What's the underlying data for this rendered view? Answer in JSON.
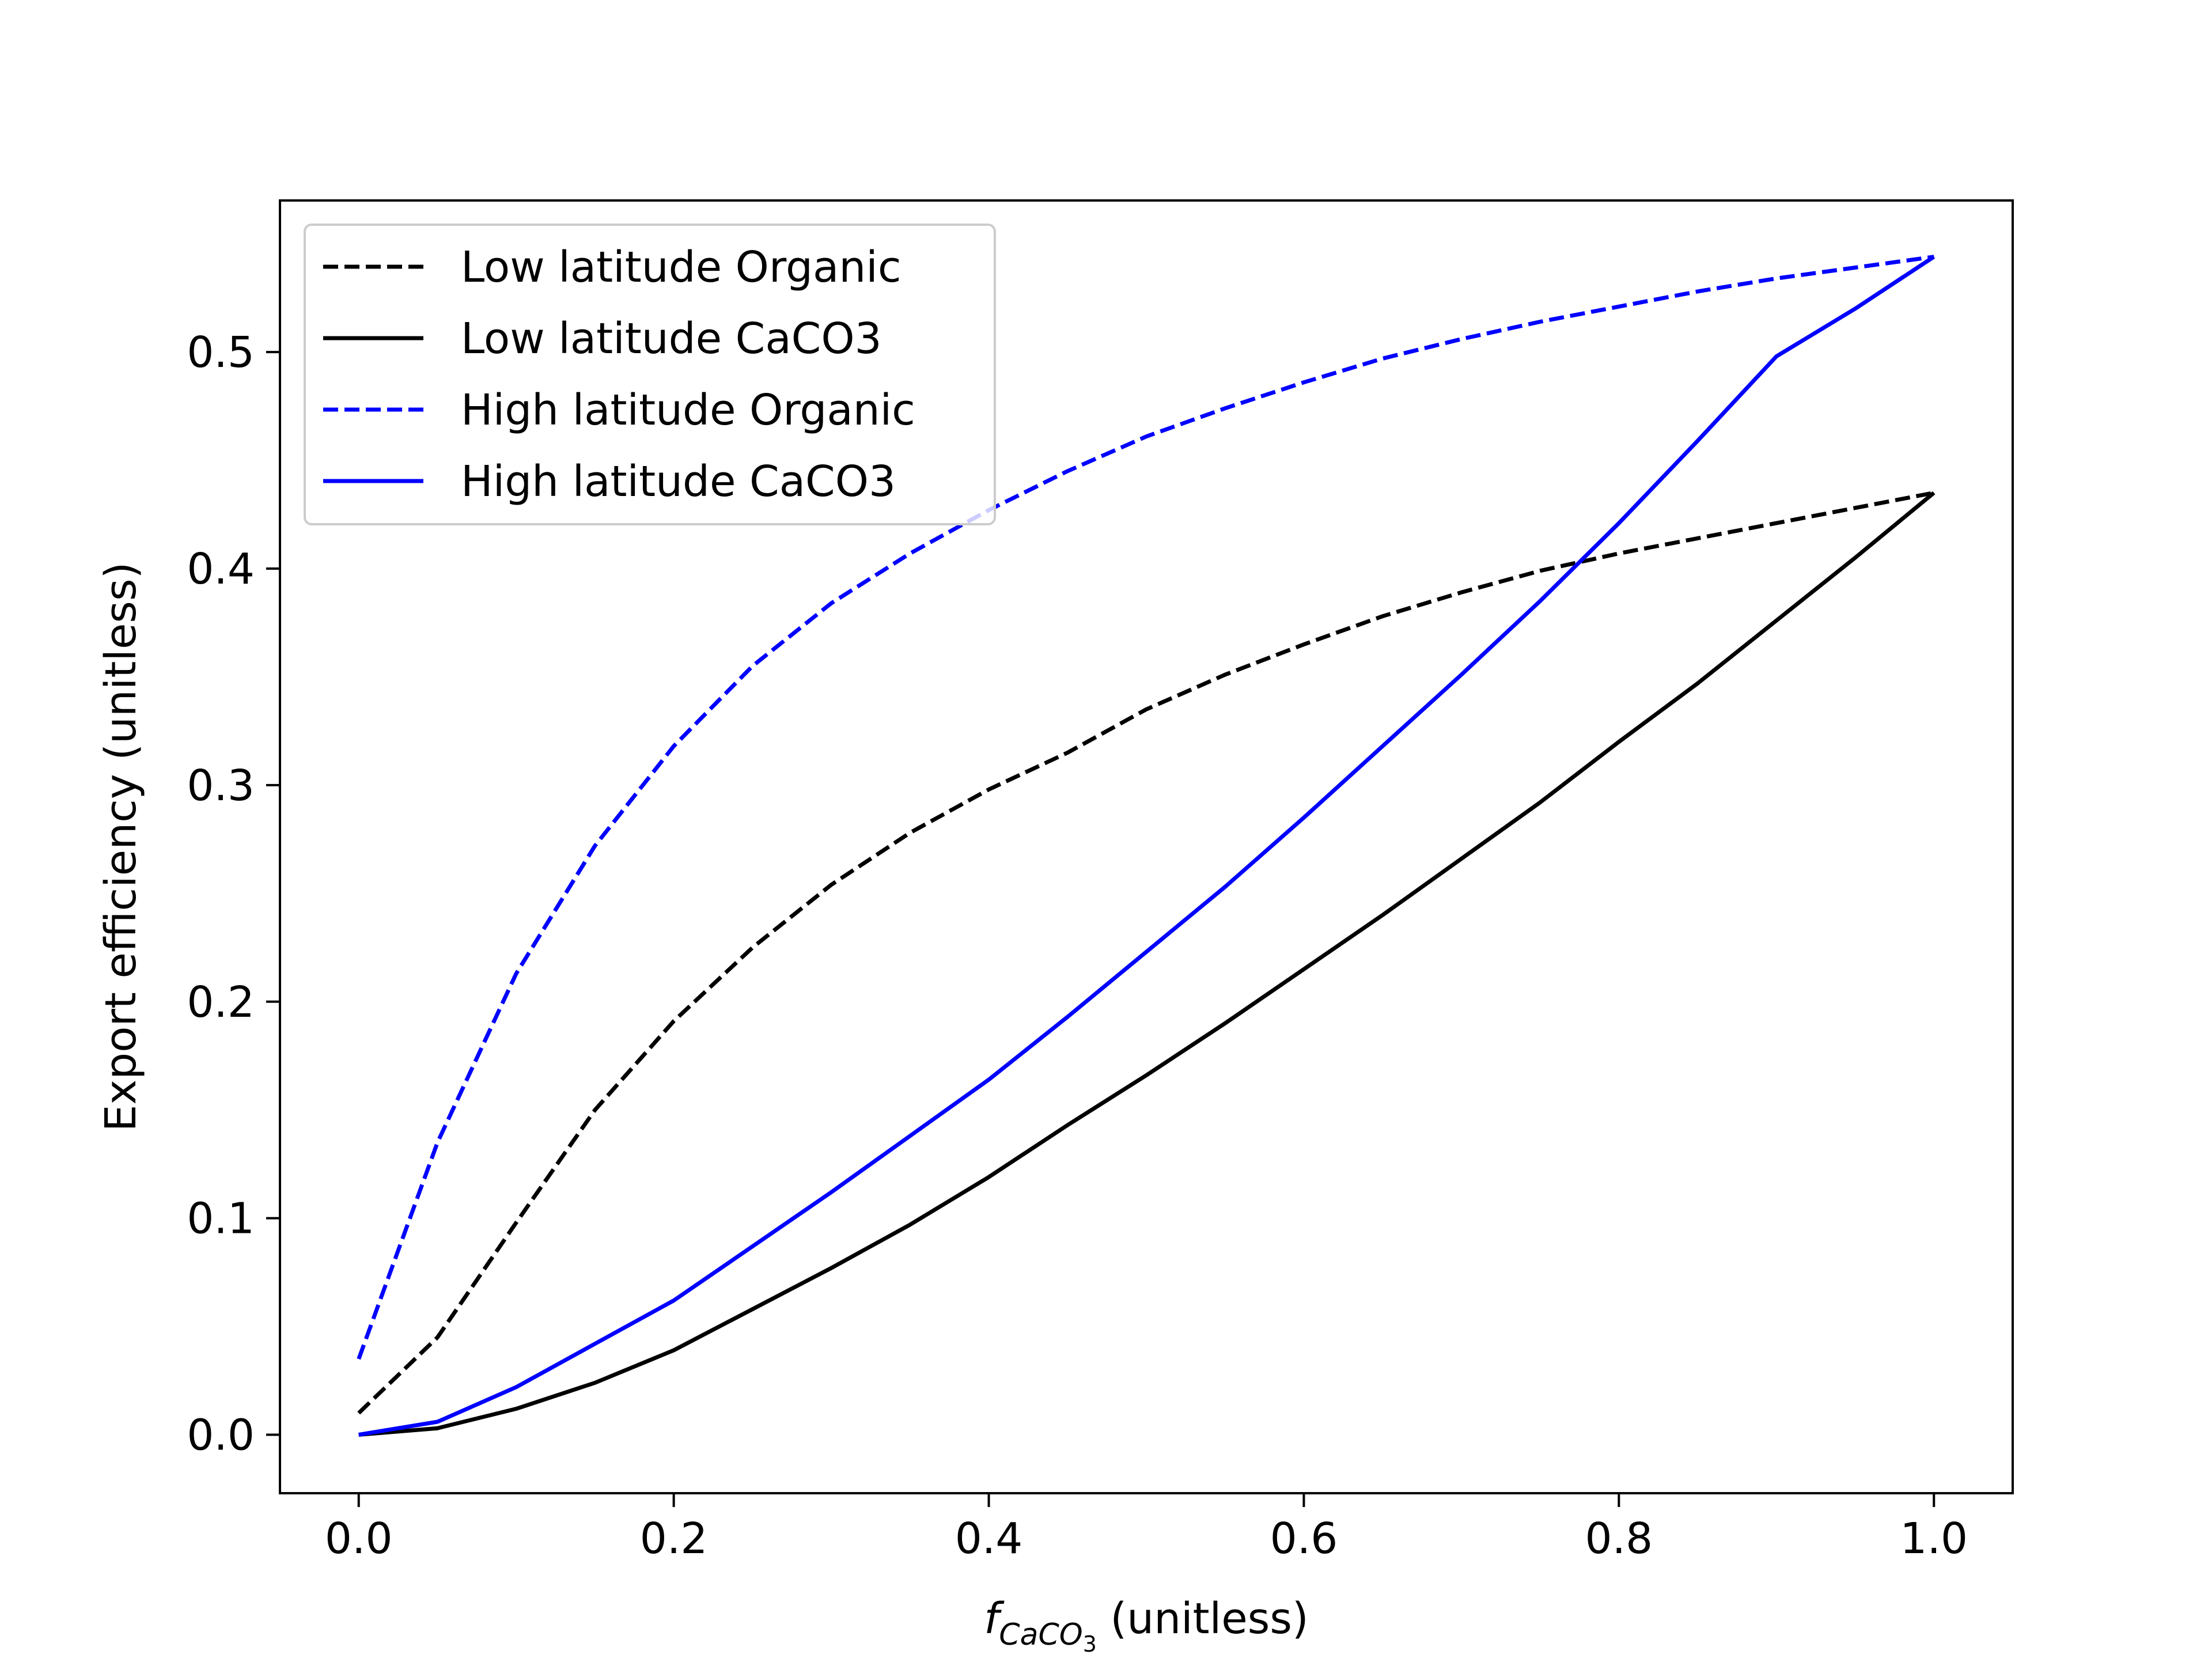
{
  "colors": {
    "background": "#ffffff",
    "axes": "#000000",
    "legend_border": "#cccccc"
  },
  "chart_data": {
    "type": "line",
    "title": "",
    "xlabel": {
      "symbol": "f",
      "subscript": "CaCO",
      "subsubscript": "3",
      "suffix": " (unitless)"
    },
    "ylabel": "Export efficiency (unitless)",
    "xlim": [
      -0.05,
      1.05
    ],
    "ylim": [
      -0.027,
      0.57
    ],
    "xticks": [
      0.0,
      0.2,
      0.4,
      0.6,
      0.8,
      1.0
    ],
    "xtick_labels": [
      "0.0",
      "0.2",
      "0.4",
      "0.6",
      "0.8",
      "1.0"
    ],
    "yticks": [
      0.0,
      0.1,
      0.2,
      0.3,
      0.4,
      0.5
    ],
    "ytick_labels": [
      "0.0",
      "0.1",
      "0.2",
      "0.3",
      "0.4",
      "0.5"
    ],
    "grid": false,
    "legend_position": "upper-left",
    "x": [
      0.0,
      0.05,
      0.1,
      0.15,
      0.2,
      0.25,
      0.3,
      0.35,
      0.4,
      0.45,
      0.5,
      0.55,
      0.6,
      0.65,
      0.7,
      0.75,
      0.8,
      0.85,
      0.9,
      0.95,
      1.0
    ],
    "series": [
      {
        "name": "Low latitude Organic",
        "color": "#000000",
        "style": "dashed",
        "values": [
          0.01,
          0.045,
          0.098,
          0.15,
          0.191,
          0.225,
          0.254,
          0.278,
          0.298,
          0.315,
          0.335,
          0.351,
          0.365,
          0.378,
          0.389,
          0.399,
          0.407,
          0.414,
          0.421,
          0.428,
          0.435
        ]
      },
      {
        "name": "Low latitude CaCO3",
        "color": "#000000",
        "style": "solid",
        "values": [
          0.0,
          0.003,
          0.012,
          0.024,
          0.039,
          0.058,
          0.077,
          0.097,
          0.119,
          0.143,
          0.166,
          0.19,
          0.215,
          0.24,
          0.266,
          0.292,
          0.32,
          0.347,
          0.376,
          0.405,
          0.435
        ]
      },
      {
        "name": "High latitude Organic",
        "color": "#0000ff",
        "style": "dashed",
        "values": [
          0.035,
          0.135,
          0.213,
          0.272,
          0.318,
          0.355,
          0.384,
          0.407,
          0.427,
          0.445,
          0.461,
          0.474,
          0.486,
          0.497,
          0.506,
          0.514,
          0.521,
          0.528,
          0.534,
          0.539,
          0.544
        ]
      },
      {
        "name": "High latitude CaCO3",
        "color": "#0000ff",
        "style": "solid",
        "values": [
          0.0,
          0.006,
          0.022,
          0.042,
          0.062,
          0.087,
          0.112,
          0.138,
          0.164,
          0.193,
          0.223,
          0.253,
          0.285,
          0.318,
          0.351,
          0.385,
          0.421,
          0.459,
          0.498,
          0.52,
          0.544
        ]
      }
    ]
  }
}
